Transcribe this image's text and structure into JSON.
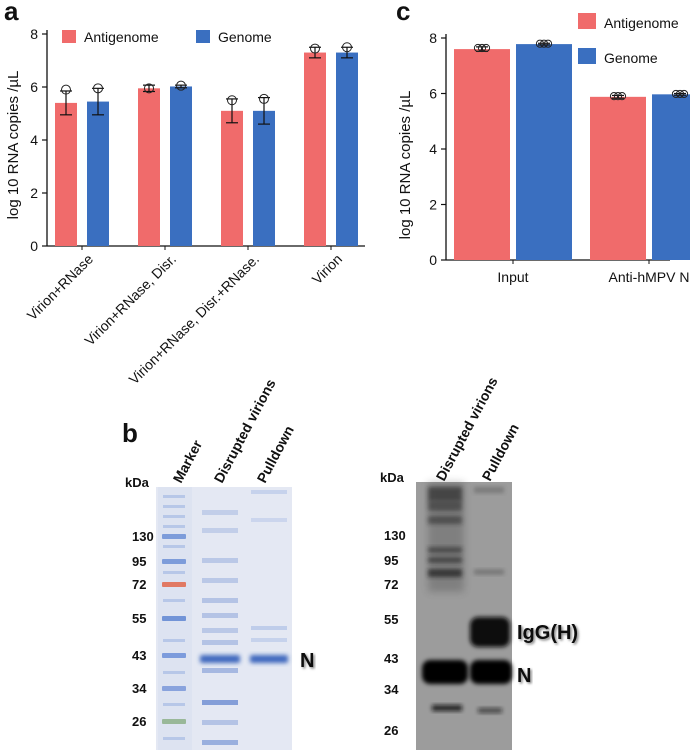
{
  "panels": {
    "a": "a",
    "b": "b",
    "c": "c"
  },
  "colors": {
    "antigenome": "#f06b6b",
    "genome": "#3a6fc0"
  },
  "chart_data": [
    {
      "id": "a",
      "type": "bar",
      "ylabel": "log 10 RNA copies /µL",
      "ylim": [
        0,
        8
      ],
      "yticks": [
        "0",
        "2",
        "4",
        "6",
        "8"
      ],
      "categories": [
        "Virion+RNase",
        "Virion+RNase, Disr.",
        "Virion+RNase, Disr.+RNase.",
        "Virion"
      ],
      "series": [
        {
          "name": "Antigenome",
          "values": [
            5.4,
            5.95,
            5.1,
            7.3
          ],
          "errors": [
            0.45,
            0.12,
            0.45,
            0.2
          ]
        },
        {
          "name": "Genome",
          "values": [
            5.45,
            6.02,
            5.1,
            7.3
          ],
          "errors": [
            0.5,
            0.05,
            0.5,
            0.2
          ]
        }
      ],
      "points": [
        [
          [
            5.9
          ],
          [
            5.95
          ],
          [
            5.5
          ],
          [
            7.45
          ]
        ],
        [
          [
            5.95
          ],
          [
            6.05
          ],
          [
            5.55
          ],
          [
            7.5
          ]
        ]
      ],
      "legend": "top"
    },
    {
      "id": "c",
      "type": "bar",
      "ylabel": "log 10 RNA copies /µL",
      "ylim": [
        0,
        8
      ],
      "yticks": [
        "0",
        "2",
        "4",
        "6",
        "8"
      ],
      "categories": [
        "Input",
        "Anti-hMPV N"
      ],
      "series": [
        {
          "name": "Antigenome",
          "values": [
            7.6,
            5.88
          ],
          "errors": [
            0.08,
            0.05
          ]
        },
        {
          "name": "Genome",
          "values": [
            7.78,
            5.97
          ],
          "errors": [
            0.03,
            0.03
          ]
        }
      ],
      "legend": "top-right"
    }
  ],
  "blot_left": {
    "kda_header": "kDa",
    "lanes": [
      "Marker",
      "Disrupted virions",
      "Pulldown"
    ],
    "markers": [
      "130",
      "95",
      "72",
      "55",
      "43",
      "34",
      "26"
    ],
    "band_label": "N"
  },
  "blot_right": {
    "kda_header": "kDa",
    "lanes": [
      "Disrupted virions",
      "Pulldown"
    ],
    "markers": [
      "130",
      "95",
      "72",
      "55",
      "43",
      "34",
      "26"
    ],
    "band_labels": [
      "IgG(H)",
      "N"
    ]
  }
}
